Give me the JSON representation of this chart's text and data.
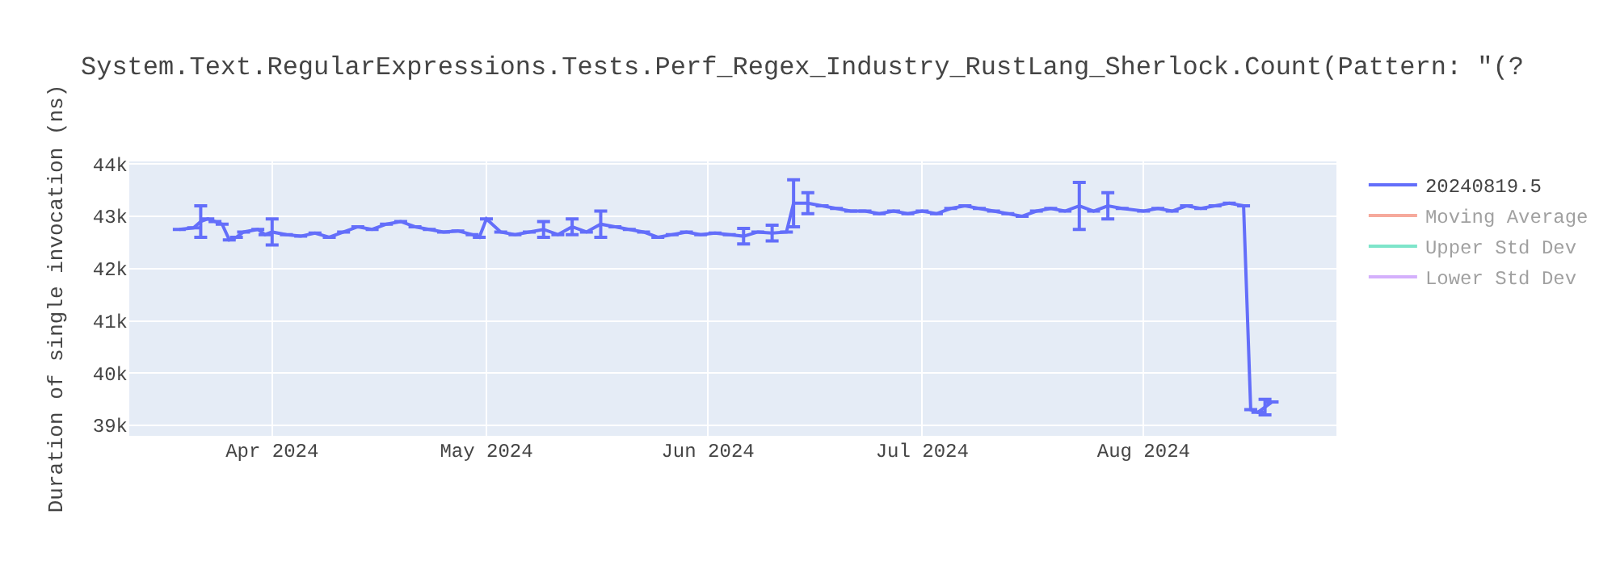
{
  "chart_data": {
    "type": "line",
    "title": "System.Text.RegularExpressions.Tests.Perf_Regex_Industry_RustLang_Sherlock.Count(Pattern: \"(?",
    "ylabel": "Duration of single invocation (ns)",
    "x": [
      "2024-03-19",
      "2024-03-21",
      "2024-03-22",
      "2024-03-23",
      "2024-03-24",
      "2024-03-25",
      "2024-03-26",
      "2024-03-27",
      "2024-03-28",
      "2024-03-30",
      "2024-03-31",
      "2024-04-01",
      "2024-04-03",
      "2024-04-05",
      "2024-04-07",
      "2024-04-09",
      "2024-04-11",
      "2024-04-13",
      "2024-04-15",
      "2024-04-17",
      "2024-04-19",
      "2024-04-21",
      "2024-04-23",
      "2024-04-25",
      "2024-04-27",
      "2024-04-29",
      "2024-04-30",
      "2024-05-01",
      "2024-05-03",
      "2024-05-05",
      "2024-05-07",
      "2024-05-09",
      "2024-05-11",
      "2024-05-13",
      "2024-05-15",
      "2024-05-17",
      "2024-05-19",
      "2024-05-21",
      "2024-05-23",
      "2024-05-25",
      "2024-05-27",
      "2024-05-29",
      "2024-05-31",
      "2024-06-02",
      "2024-06-04",
      "2024-06-06",
      "2024-06-08",
      "2024-06-10",
      "2024-06-12",
      "2024-06-13",
      "2024-06-15",
      "2024-06-17",
      "2024-06-19",
      "2024-06-21",
      "2024-06-23",
      "2024-06-25",
      "2024-06-27",
      "2024-06-29",
      "2024-07-01",
      "2024-07-03",
      "2024-07-05",
      "2024-07-07",
      "2024-07-09",
      "2024-07-11",
      "2024-07-13",
      "2024-07-15",
      "2024-07-17",
      "2024-07-19",
      "2024-07-21",
      "2024-07-23",
      "2024-07-25",
      "2024-07-27",
      "2024-07-29",
      "2024-08-01",
      "2024-08-03",
      "2024-08-05",
      "2024-08-07",
      "2024-08-09",
      "2024-08-11",
      "2024-08-13",
      "2024-08-15",
      "2024-08-16",
      "2024-08-17",
      "2024-08-18",
      "2024-08-19"
    ],
    "series": [
      {
        "name": "20240819.5",
        "color": "#636efa",
        "values": [
          42750,
          42780,
          42900,
          42950,
          42900,
          42850,
          42550,
          42600,
          42700,
          42750,
          42650,
          42700,
          42650,
          42620,
          42680,
          42600,
          42700,
          42800,
          42750,
          42850,
          42900,
          42800,
          42750,
          42700,
          42720,
          42650,
          42600,
          42950,
          42700,
          42650,
          42700,
          42750,
          42650,
          42800,
          42700,
          42850,
          42800,
          42750,
          42700,
          42600,
          42650,
          42700,
          42650,
          42680,
          42650,
          42620,
          42700,
          42680,
          42700,
          43250,
          43250,
          43200,
          43150,
          43100,
          43100,
          43050,
          43100,
          43050,
          43100,
          43050,
          43150,
          43200,
          43150,
          43100,
          43050,
          43000,
          43100,
          43150,
          43100,
          43200,
          43100,
          43200,
          43150,
          43100,
          43150,
          43100,
          43200,
          43150,
          43200,
          43250,
          43200,
          39300,
          39250,
          39350,
          39450
        ],
        "errors": [
          null,
          null,
          300,
          null,
          null,
          null,
          null,
          null,
          null,
          null,
          null,
          250,
          null,
          null,
          null,
          null,
          null,
          null,
          null,
          null,
          null,
          null,
          null,
          null,
          null,
          null,
          null,
          null,
          null,
          null,
          null,
          150,
          null,
          150,
          null,
          250,
          null,
          null,
          null,
          null,
          null,
          null,
          null,
          null,
          null,
          150,
          null,
          150,
          null,
          450,
          200,
          null,
          null,
          null,
          null,
          null,
          null,
          null,
          null,
          null,
          null,
          null,
          null,
          null,
          null,
          null,
          null,
          null,
          null,
          450,
          null,
          250,
          null,
          null,
          null,
          null,
          null,
          null,
          null,
          null,
          null,
          null,
          null,
          150,
          null
        ]
      },
      {
        "name": "Moving Average",
        "color": "#ef553b",
        "values": [
          null,
          null,
          null,
          null,
          null,
          null,
          null,
          null,
          null,
          null,
          null,
          null,
          null,
          null,
          null,
          null,
          null,
          null,
          null,
          null,
          null,
          null,
          null,
          null,
          null,
          null,
          null,
          null,
          null,
          null,
          null,
          null,
          null,
          null,
          null,
          null,
          null,
          null,
          null,
          null,
          null,
          null,
          null,
          null,
          null,
          null,
          null,
          null,
          null,
          null,
          null,
          null,
          null,
          null,
          null,
          null,
          null,
          null,
          null,
          null,
          null,
          null,
          null,
          null,
          null,
          null,
          null,
          null,
          null,
          null,
          null,
          null,
          null,
          null,
          null,
          null,
          null,
          null,
          null,
          null,
          null,
          null,
          null,
          null,
          null
        ]
      },
      {
        "name": "Upper Std Dev",
        "color": "#00cc96",
        "values": [
          null,
          null,
          null,
          null,
          null,
          null,
          null,
          null,
          null,
          null,
          null,
          null,
          null,
          null,
          null,
          null,
          null,
          null,
          null,
          null,
          null,
          null,
          null,
          null,
          null,
          null,
          null,
          null,
          null,
          null,
          null,
          null,
          null,
          null,
          null,
          null,
          null,
          null,
          null,
          null,
          null,
          null,
          null,
          null,
          null,
          null,
          null,
          null,
          null,
          null,
          null,
          null,
          null,
          null,
          null,
          null,
          null,
          null,
          null,
          null,
          null,
          null,
          null,
          null,
          null,
          null,
          null,
          null,
          null,
          null,
          null,
          null,
          null,
          null,
          null,
          null,
          null,
          null,
          null,
          null,
          null,
          null,
          null,
          null,
          null
        ]
      },
      {
        "name": "Lower Std Dev",
        "color": "#ab63fa",
        "values": [
          null,
          null,
          null,
          null,
          null,
          null,
          null,
          null,
          null,
          null,
          null,
          null,
          null,
          null,
          null,
          null,
          null,
          null,
          null,
          null,
          null,
          null,
          null,
          null,
          null,
          null,
          null,
          null,
          null,
          null,
          null,
          null,
          null,
          null,
          null,
          null,
          null,
          null,
          null,
          null,
          null,
          null,
          null,
          null,
          null,
          null,
          null,
          null,
          null,
          null,
          null,
          null,
          null,
          null,
          null,
          null,
          null,
          null,
          null,
          null,
          null,
          null,
          null,
          null,
          null,
          null,
          null,
          null,
          null,
          null,
          null,
          null,
          null,
          null,
          null,
          null,
          null,
          null,
          null,
          null,
          null,
          null,
          null,
          null,
          null
        ]
      }
    ],
    "xlim": [
      "2024-03-12",
      "2024-08-28"
    ],
    "xticks": [
      {
        "value": "2024-04-01",
        "label": "Apr 2024"
      },
      {
        "value": "2024-05-01",
        "label": "May 2024"
      },
      {
        "value": "2024-06-01",
        "label": "Jun 2024"
      },
      {
        "value": "2024-07-01",
        "label": "Jul 2024"
      },
      {
        "value": "2024-08-01",
        "label": "Aug 2024"
      }
    ],
    "ylim": [
      38800,
      44050
    ],
    "yticks": [
      {
        "value": 39000,
        "label": "39k"
      },
      {
        "value": 40000,
        "label": "40k"
      },
      {
        "value": 41000,
        "label": "41k"
      },
      {
        "value": 42000,
        "label": "42k"
      },
      {
        "value": 43000,
        "label": "43k"
      },
      {
        "value": 44000,
        "label": "44k"
      }
    ],
    "grid": true,
    "legend": "right",
    "marker": "none",
    "line_style": "solid"
  }
}
